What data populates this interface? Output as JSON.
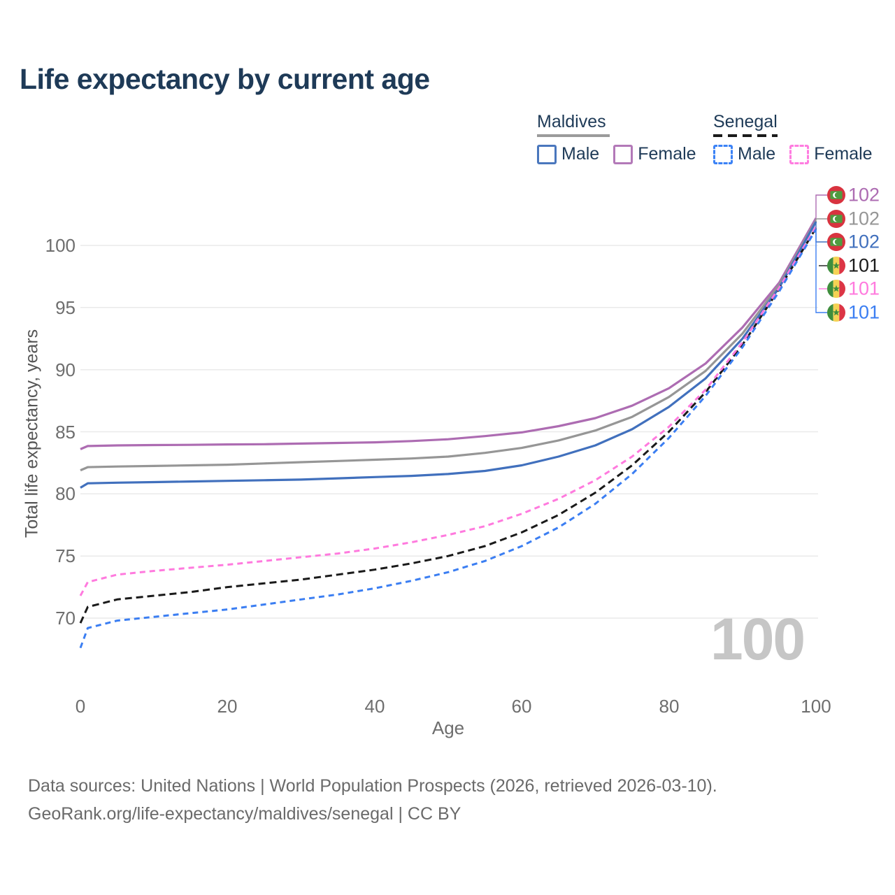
{
  "title": "Life expectancy by current age",
  "watermark": "100",
  "legend": {
    "maldives": {
      "label": "Maldives",
      "male_label": "Male",
      "female_label": "Female",
      "male_color": "#4a77bd",
      "female_color": "#b379b8",
      "sample_style": "solid",
      "sample_color": "#9b9b9b"
    },
    "senegal": {
      "label": "Senegal",
      "male_label": "Male",
      "female_label": "Female",
      "male_color": "#3b82f6",
      "female_color": "#ff7ce0",
      "sample_style": "dashed",
      "sample_color": "#1a1a1a"
    }
  },
  "footer": {
    "line1": "Data sources: United Nations | World Population Prospects (2026, retrieved 2026-03-10).",
    "line2": "GeoRank.org/life-expectancy/maldives/senegal | CC BY"
  },
  "chart_data": {
    "type": "line",
    "title": "Life expectancy by current age",
    "xlabel": "Age",
    "ylabel": "Total life expectancy, years",
    "xlim": [
      0,
      100
    ],
    "ylim": [
      67,
      103
    ],
    "x_ticks": [
      0,
      20,
      40,
      60,
      80,
      100
    ],
    "y_ticks": [
      70,
      75,
      80,
      85,
      90,
      95,
      100
    ],
    "grid": "horizontal",
    "grid_color": "#eaeaea",
    "tick_color": "#6e6e6e",
    "legend_position": "top-right",
    "x": [
      0,
      1,
      5,
      10,
      15,
      20,
      25,
      30,
      35,
      40,
      45,
      50,
      55,
      60,
      65,
      70,
      75,
      80,
      85,
      90,
      95,
      100
    ],
    "series": [
      {
        "name": "Maldives Female",
        "country": "Maldives",
        "sex": "Female",
        "color": "#ad6cb2",
        "dashed": false,
        "flag": "mv",
        "end_label": "102",
        "values": [
          83.6,
          83.85,
          83.9,
          83.93,
          83.95,
          83.98,
          84.0,
          84.05,
          84.1,
          84.15,
          84.25,
          84.4,
          84.65,
          84.95,
          85.45,
          86.1,
          87.1,
          88.5,
          90.5,
          93.4,
          97.0,
          102.2
        ]
      },
      {
        "name": "Maldives Both sexes",
        "country": "Maldives",
        "sex": "Both",
        "color": "#969696",
        "dashed": false,
        "flag": "mv",
        "end_label": "102",
        "values": [
          81.9,
          82.15,
          82.2,
          82.25,
          82.3,
          82.35,
          82.45,
          82.55,
          82.65,
          82.75,
          82.85,
          83.0,
          83.3,
          83.7,
          84.3,
          85.1,
          86.2,
          87.8,
          89.9,
          92.9,
          96.8,
          102.0
        ]
      },
      {
        "name": "Maldives Male",
        "country": "Maldives",
        "sex": "Male",
        "color": "#4170bd",
        "dashed": false,
        "flag": "mv",
        "end_label": "102",
        "values": [
          80.5,
          80.85,
          80.9,
          80.95,
          81.0,
          81.05,
          81.1,
          81.15,
          81.25,
          81.35,
          81.45,
          81.6,
          81.85,
          82.3,
          83.0,
          83.9,
          85.2,
          87.0,
          89.3,
          92.5,
          96.6,
          101.9
        ]
      },
      {
        "name": "Senegal Both sexes",
        "country": "Senegal",
        "sex": "Both",
        "color": "#1a1a1a",
        "dashed": true,
        "flag": "sn",
        "end_label": "101",
        "values": [
          69.6,
          70.9,
          71.5,
          71.8,
          72.1,
          72.5,
          72.8,
          73.1,
          73.5,
          73.9,
          74.4,
          75.0,
          75.8,
          76.9,
          78.3,
          80.1,
          82.3,
          85.0,
          88.2,
          92.0,
          96.5,
          101.4
        ]
      },
      {
        "name": "Senegal Female",
        "country": "Senegal",
        "sex": "Female",
        "color": "#ff7ade",
        "dashed": true,
        "flag": "sn",
        "end_label": "101",
        "values": [
          71.8,
          72.9,
          73.5,
          73.8,
          74.05,
          74.3,
          74.6,
          74.9,
          75.2,
          75.6,
          76.1,
          76.7,
          77.4,
          78.4,
          79.6,
          81.1,
          83.0,
          85.4,
          88.4,
          92.2,
          96.6,
          101.5
        ]
      },
      {
        "name": "Senegal Male",
        "country": "Senegal",
        "sex": "Male",
        "color": "#3b7ef2",
        "dashed": true,
        "flag": "sn",
        "end_label": "101",
        "values": [
          67.6,
          69.2,
          69.8,
          70.1,
          70.4,
          70.7,
          71.1,
          71.5,
          71.9,
          72.4,
          73.0,
          73.7,
          74.6,
          75.8,
          77.3,
          79.2,
          81.6,
          84.5,
          87.9,
          91.8,
          96.3,
          101.3
        ]
      }
    ],
    "flag_colors": {
      "maldives_red": "#d8333f",
      "maldives_green": "#4f9c40",
      "maldives_crescent": "#ffffff",
      "senegal_green": "#3f8e3d",
      "senegal_yellow": "#f5d254",
      "senegal_red": "#dc3545",
      "senegal_star": "#3f8e3d"
    }
  }
}
